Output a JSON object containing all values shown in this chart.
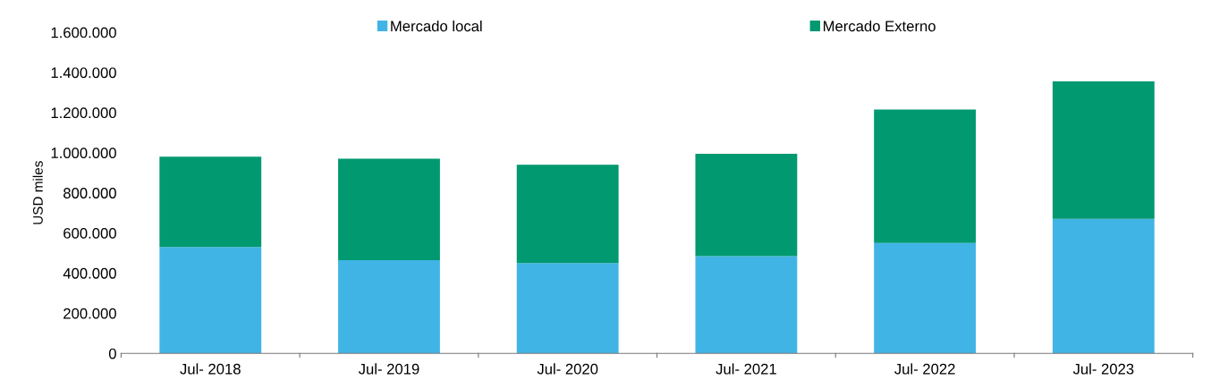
{
  "chart_data": {
    "type": "bar",
    "stacked": true,
    "ylabel": "USD miles",
    "categories": [
      "Jul- 2018",
      "Jul- 2019",
      "Jul- 2020",
      "Jul- 2021",
      "Jul- 2022",
      "Jul- 2023"
    ],
    "series": [
      {
        "name": "Mercado local",
        "color": "#41b4e6",
        "values": [
          530000,
          465000,
          450000,
          485000,
          550000,
          670000
        ]
      },
      {
        "name": "Mercado Externo",
        "color": "#009970",
        "values": [
          450000,
          505000,
          490000,
          510000,
          665000,
          685000
        ]
      }
    ],
    "ylim": [
      0,
      1600000
    ],
    "yticks": [
      {
        "value": 0,
        "label": "0"
      },
      {
        "value": 200000,
        "label": "200.000"
      },
      {
        "value": 400000,
        "label": "400.000"
      },
      {
        "value": 600000,
        "label": "600.000"
      },
      {
        "value": 800000,
        "label": "800.000"
      },
      {
        "value": 1000000,
        "label": "1.000.000"
      },
      {
        "value": 1200000,
        "label": "1.200.000"
      },
      {
        "value": 1400000,
        "label": "1.400.000"
      },
      {
        "value": 1600000,
        "label": "1.600.000"
      }
    ],
    "grid": false,
    "legend": "top"
  }
}
